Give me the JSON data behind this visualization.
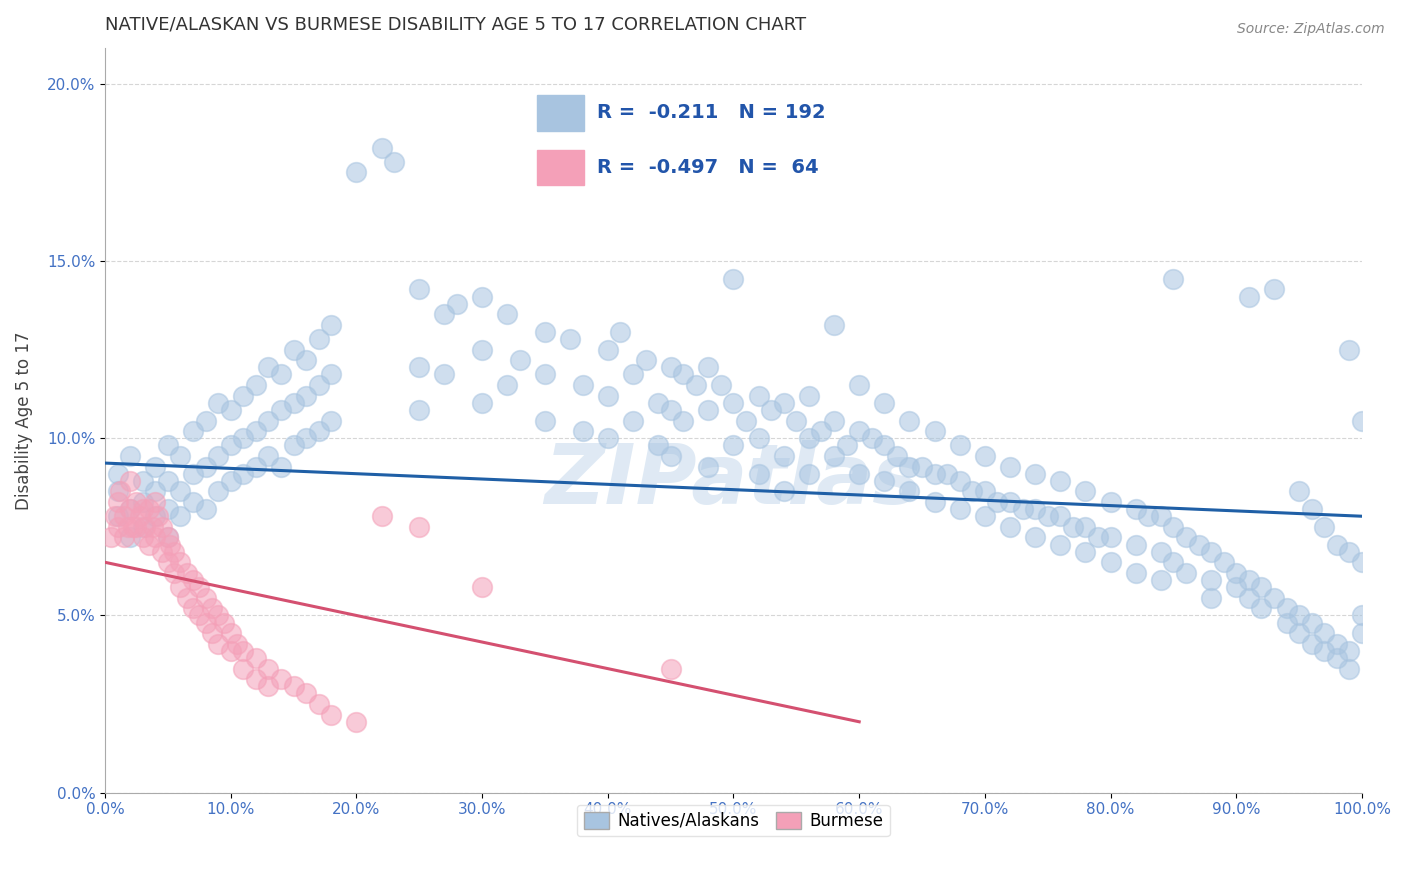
{
  "title": "NATIVE/ALASKAN VS BURMESE DISABILITY AGE 5 TO 17 CORRELATION CHART",
  "source": "Source: ZipAtlas.com",
  "ylabel": "Disability Age 5 to 17",
  "xlim": [
    0,
    100
  ],
  "ylim": [
    0,
    21
  ],
  "xticks": [
    0,
    10,
    20,
    30,
    40,
    50,
    60,
    70,
    80,
    90,
    100
  ],
  "yticks": [
    0,
    5,
    10,
    15,
    20
  ],
  "blue_R": -0.211,
  "blue_N": 192,
  "pink_R": -0.497,
  "pink_N": 64,
  "blue_color": "#a8c4e0",
  "blue_line_color": "#1f5fa6",
  "pink_color": "#f4a0b8",
  "pink_line_color": "#d45070",
  "watermark_text": "ZIPatlas",
  "blue_line_x": [
    0,
    100
  ],
  "blue_line_y": [
    9.3,
    7.8
  ],
  "pink_line_x": [
    0,
    60
  ],
  "pink_line_y": [
    6.5,
    2.0
  ],
  "blue_scatter": [
    [
      1,
      9.0
    ],
    [
      1,
      8.5
    ],
    [
      1,
      7.8
    ],
    [
      2,
      9.5
    ],
    [
      2,
      8.0
    ],
    [
      2,
      7.2
    ],
    [
      3,
      8.8
    ],
    [
      3,
      8.2
    ],
    [
      3,
      7.5
    ],
    [
      4,
      9.2
    ],
    [
      4,
      8.5
    ],
    [
      4,
      7.8
    ],
    [
      5,
      9.8
    ],
    [
      5,
      8.8
    ],
    [
      5,
      8.0
    ],
    [
      5,
      7.2
    ],
    [
      6,
      9.5
    ],
    [
      6,
      8.5
    ],
    [
      6,
      7.8
    ],
    [
      7,
      10.2
    ],
    [
      7,
      9.0
    ],
    [
      7,
      8.2
    ],
    [
      8,
      10.5
    ],
    [
      8,
      9.2
    ],
    [
      8,
      8.0
    ],
    [
      9,
      11.0
    ],
    [
      9,
      9.5
    ],
    [
      9,
      8.5
    ],
    [
      10,
      10.8
    ],
    [
      10,
      9.8
    ],
    [
      10,
      8.8
    ],
    [
      11,
      11.2
    ],
    [
      11,
      10.0
    ],
    [
      11,
      9.0
    ],
    [
      12,
      11.5
    ],
    [
      12,
      10.2
    ],
    [
      12,
      9.2
    ],
    [
      13,
      12.0
    ],
    [
      13,
      10.5
    ],
    [
      13,
      9.5
    ],
    [
      14,
      11.8
    ],
    [
      14,
      10.8
    ],
    [
      14,
      9.2
    ],
    [
      15,
      12.5
    ],
    [
      15,
      11.0
    ],
    [
      15,
      9.8
    ],
    [
      16,
      12.2
    ],
    [
      16,
      11.2
    ],
    [
      16,
      10.0
    ],
    [
      17,
      12.8
    ],
    [
      17,
      11.5
    ],
    [
      17,
      10.2
    ],
    [
      18,
      13.2
    ],
    [
      18,
      11.8
    ],
    [
      18,
      10.5
    ],
    [
      20,
      17.5
    ],
    [
      22,
      18.2
    ],
    [
      23,
      17.8
    ],
    [
      25,
      14.2
    ],
    [
      25,
      12.0
    ],
    [
      25,
      10.8
    ],
    [
      27,
      13.5
    ],
    [
      27,
      11.8
    ],
    [
      28,
      13.8
    ],
    [
      30,
      14.0
    ],
    [
      30,
      12.5
    ],
    [
      30,
      11.0
    ],
    [
      32,
      13.5
    ],
    [
      32,
      11.5
    ],
    [
      33,
      12.2
    ],
    [
      35,
      13.0
    ],
    [
      35,
      11.8
    ],
    [
      35,
      10.5
    ],
    [
      37,
      12.8
    ],
    [
      38,
      11.5
    ],
    [
      38,
      10.2
    ],
    [
      40,
      12.5
    ],
    [
      40,
      11.2
    ],
    [
      40,
      10.0
    ],
    [
      41,
      13.0
    ],
    [
      42,
      11.8
    ],
    [
      42,
      10.5
    ],
    [
      43,
      12.2
    ],
    [
      44,
      11.0
    ],
    [
      44,
      9.8
    ],
    [
      45,
      12.0
    ],
    [
      45,
      10.8
    ],
    [
      45,
      9.5
    ],
    [
      46,
      11.8
    ],
    [
      46,
      10.5
    ],
    [
      47,
      11.5
    ],
    [
      48,
      12.0
    ],
    [
      48,
      10.8
    ],
    [
      48,
      9.2
    ],
    [
      49,
      11.5
    ],
    [
      50,
      14.5
    ],
    [
      50,
      11.0
    ],
    [
      50,
      9.8
    ],
    [
      51,
      10.5
    ],
    [
      52,
      11.2
    ],
    [
      52,
      10.0
    ],
    [
      52,
      9.0
    ],
    [
      53,
      10.8
    ],
    [
      54,
      11.0
    ],
    [
      54,
      9.5
    ],
    [
      54,
      8.5
    ],
    [
      55,
      10.5
    ],
    [
      56,
      11.2
    ],
    [
      56,
      10.0
    ],
    [
      56,
      9.0
    ],
    [
      57,
      10.2
    ],
    [
      58,
      13.2
    ],
    [
      58,
      10.5
    ],
    [
      58,
      9.5
    ],
    [
      59,
      9.8
    ],
    [
      60,
      11.5
    ],
    [
      60,
      10.2
    ],
    [
      60,
      9.0
    ],
    [
      61,
      10.0
    ],
    [
      62,
      11.0
    ],
    [
      62,
      9.8
    ],
    [
      62,
      8.8
    ],
    [
      63,
      9.5
    ],
    [
      64,
      10.5
    ],
    [
      64,
      9.2
    ],
    [
      64,
      8.5
    ],
    [
      65,
      9.2
    ],
    [
      66,
      10.2
    ],
    [
      66,
      9.0
    ],
    [
      66,
      8.2
    ],
    [
      67,
      9.0
    ],
    [
      68,
      9.8
    ],
    [
      68,
      8.8
    ],
    [
      68,
      8.0
    ],
    [
      69,
      8.5
    ],
    [
      70,
      9.5
    ],
    [
      70,
      8.5
    ],
    [
      70,
      7.8
    ],
    [
      71,
      8.2
    ],
    [
      72,
      9.2
    ],
    [
      72,
      8.2
    ],
    [
      72,
      7.5
    ],
    [
      73,
      8.0
    ],
    [
      74,
      9.0
    ],
    [
      74,
      8.0
    ],
    [
      74,
      7.2
    ],
    [
      75,
      7.8
    ],
    [
      76,
      8.8
    ],
    [
      76,
      7.8
    ],
    [
      76,
      7.0
    ],
    [
      77,
      7.5
    ],
    [
      78,
      8.5
    ],
    [
      78,
      7.5
    ],
    [
      78,
      6.8
    ],
    [
      79,
      7.2
    ],
    [
      80,
      8.2
    ],
    [
      80,
      7.2
    ],
    [
      80,
      6.5
    ],
    [
      82,
      8.0
    ],
    [
      82,
      7.0
    ],
    [
      82,
      6.2
    ],
    [
      83,
      7.8
    ],
    [
      84,
      7.8
    ],
    [
      84,
      6.8
    ],
    [
      84,
      6.0
    ],
    [
      85,
      14.5
    ],
    [
      85,
      7.5
    ],
    [
      85,
      6.5
    ],
    [
      86,
      7.2
    ],
    [
      86,
      6.2
    ],
    [
      87,
      7.0
    ],
    [
      88,
      6.8
    ],
    [
      88,
      6.0
    ],
    [
      88,
      5.5
    ],
    [
      89,
      6.5
    ],
    [
      90,
      6.2
    ],
    [
      90,
      5.8
    ],
    [
      91,
      14.0
    ],
    [
      91,
      6.0
    ],
    [
      91,
      5.5
    ],
    [
      92,
      5.8
    ],
    [
      92,
      5.2
    ],
    [
      93,
      14.2
    ],
    [
      93,
      5.5
    ],
    [
      94,
      5.2
    ],
    [
      94,
      4.8
    ],
    [
      95,
      8.5
    ],
    [
      95,
      5.0
    ],
    [
      95,
      4.5
    ],
    [
      96,
      8.0
    ],
    [
      96,
      4.8
    ],
    [
      96,
      4.2
    ],
    [
      97,
      7.5
    ],
    [
      97,
      4.5
    ],
    [
      97,
      4.0
    ],
    [
      98,
      7.0
    ],
    [
      98,
      4.2
    ],
    [
      98,
      3.8
    ],
    [
      99,
      12.5
    ],
    [
      99,
      6.8
    ],
    [
      99,
      4.0
    ],
    [
      99,
      3.5
    ],
    [
      100,
      10.5
    ],
    [
      100,
      6.5
    ],
    [
      100,
      5.0
    ],
    [
      100,
      4.5
    ]
  ],
  "pink_scatter": [
    [
      0.5,
      7.2
    ],
    [
      0.8,
      7.8
    ],
    [
      1.0,
      8.2
    ],
    [
      1.0,
      7.5
    ],
    [
      1.2,
      8.5
    ],
    [
      1.5,
      7.8
    ],
    [
      1.5,
      7.2
    ],
    [
      1.8,
      7.5
    ],
    [
      2.0,
      8.8
    ],
    [
      2.0,
      8.0
    ],
    [
      2.2,
      7.5
    ],
    [
      2.5,
      8.2
    ],
    [
      2.5,
      7.5
    ],
    [
      2.8,
      7.8
    ],
    [
      3.0,
      8.0
    ],
    [
      3.0,
      7.2
    ],
    [
      3.2,
      7.5
    ],
    [
      3.5,
      8.0
    ],
    [
      3.5,
      7.0
    ],
    [
      3.8,
      7.5
    ],
    [
      4.0,
      8.2
    ],
    [
      4.0,
      7.2
    ],
    [
      4.2,
      7.8
    ],
    [
      4.5,
      7.5
    ],
    [
      4.5,
      6.8
    ],
    [
      5.0,
      7.2
    ],
    [
      5.0,
      6.5
    ],
    [
      5.2,
      7.0
    ],
    [
      5.5,
      6.8
    ],
    [
      5.5,
      6.2
    ],
    [
      6.0,
      6.5
    ],
    [
      6.0,
      5.8
    ],
    [
      6.5,
      6.2
    ],
    [
      6.5,
      5.5
    ],
    [
      7.0,
      6.0
    ],
    [
      7.0,
      5.2
    ],
    [
      7.5,
      5.8
    ],
    [
      7.5,
      5.0
    ],
    [
      8.0,
      5.5
    ],
    [
      8.0,
      4.8
    ],
    [
      8.5,
      5.2
    ],
    [
      8.5,
      4.5
    ],
    [
      9.0,
      5.0
    ],
    [
      9.0,
      4.2
    ],
    [
      9.5,
      4.8
    ],
    [
      10.0,
      4.5
    ],
    [
      10.0,
      4.0
    ],
    [
      10.5,
      4.2
    ],
    [
      11.0,
      4.0
    ],
    [
      11.0,
      3.5
    ],
    [
      12.0,
      3.8
    ],
    [
      12.0,
      3.2
    ],
    [
      13.0,
      3.5
    ],
    [
      13.0,
      3.0
    ],
    [
      14.0,
      3.2
    ],
    [
      15.0,
      3.0
    ],
    [
      16.0,
      2.8
    ],
    [
      17.0,
      2.5
    ],
    [
      18.0,
      2.2
    ],
    [
      20.0,
      2.0
    ],
    [
      22.0,
      7.8
    ],
    [
      25.0,
      7.5
    ],
    [
      30.0,
      5.8
    ],
    [
      45.0,
      3.5
    ]
  ]
}
